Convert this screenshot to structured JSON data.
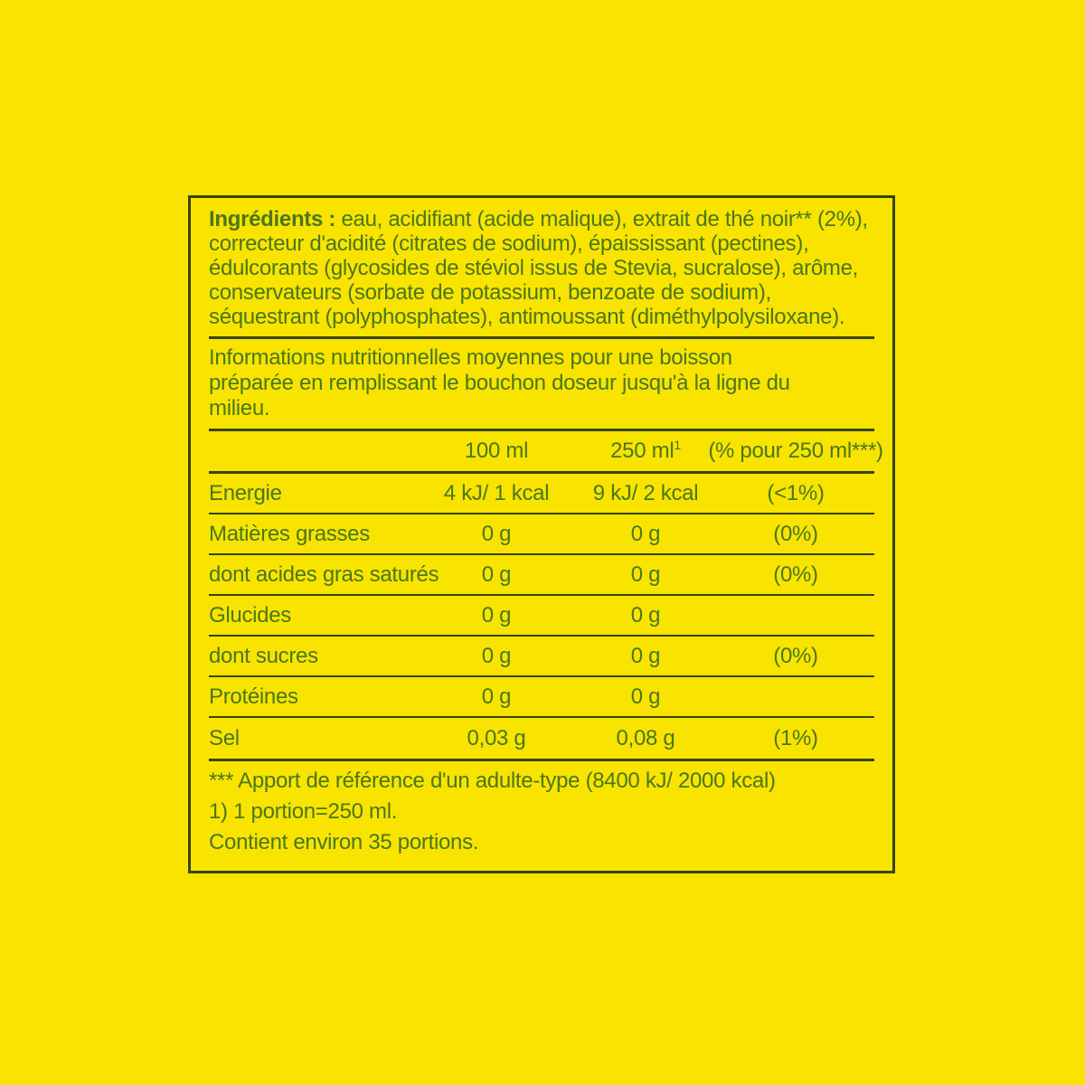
{
  "label": {
    "ingredients": {
      "bold_prefix": "Ingrédients :",
      "text": " eau, acidifiant (acide malique), extrait de thé noir** (2%), correcteur d'acidité (citrates de sodium), épaississant (pectines), édulcorants (glycosides de stéviol issus de Stevia, sucralose), arôme, conservateurs (sorbate de potassium, benzoate de sodium), séquestrant (polyphosphates), antimoussant (diméthylpolysiloxane)."
    },
    "nutrition_intro": "Informations nutritionnelles moyennes pour une boisson préparée en remplissant le bouchon doseur jusqu'à la ligne du milieu.",
    "table": {
      "col_100ml": "100 ml",
      "col_250ml": "250 ml",
      "col_250ml_footnote_ref": "1",
      "col_percent": "(% pour 250 ml***)",
      "rows": [
        {
          "label": "Energie",
          "per_100ml": "4 kJ/ 1 kcal",
          "per_250ml": "9 kJ/ 2 kcal",
          "percent": "(<1%)"
        },
        {
          "label": "Matières grasses",
          "per_100ml": "0 g",
          "per_250ml": "0 g",
          "percent": "(0%)"
        },
        {
          "label": "dont acides gras saturés",
          "per_100ml": "0 g",
          "per_250ml": "0 g",
          "percent": "(0%)"
        },
        {
          "label": "Glucides",
          "per_100ml": "0 g",
          "per_250ml": "0 g",
          "percent": ""
        },
        {
          "label": "dont sucres",
          "per_100ml": "0 g",
          "per_250ml": "0 g",
          "percent": "(0%)"
        },
        {
          "label": "Protéines",
          "per_100ml": "0 g",
          "per_250ml": "0 g",
          "percent": ""
        },
        {
          "label": "Sel",
          "per_100ml": "0,03 g",
          "per_250ml": "0,08 g",
          "percent": "(1%)"
        }
      ]
    },
    "footnotes": [
      "*** Apport de référence d'un adulte-type (8400 kJ/ 2000 kcal)",
      "1) 1 portion=250 ml.",
      "Contient environ 35 portions."
    ],
    "colors": {
      "background_yellow": "#F8E400",
      "text_green": "#4A761E",
      "border_olive": "#39430D"
    }
  }
}
